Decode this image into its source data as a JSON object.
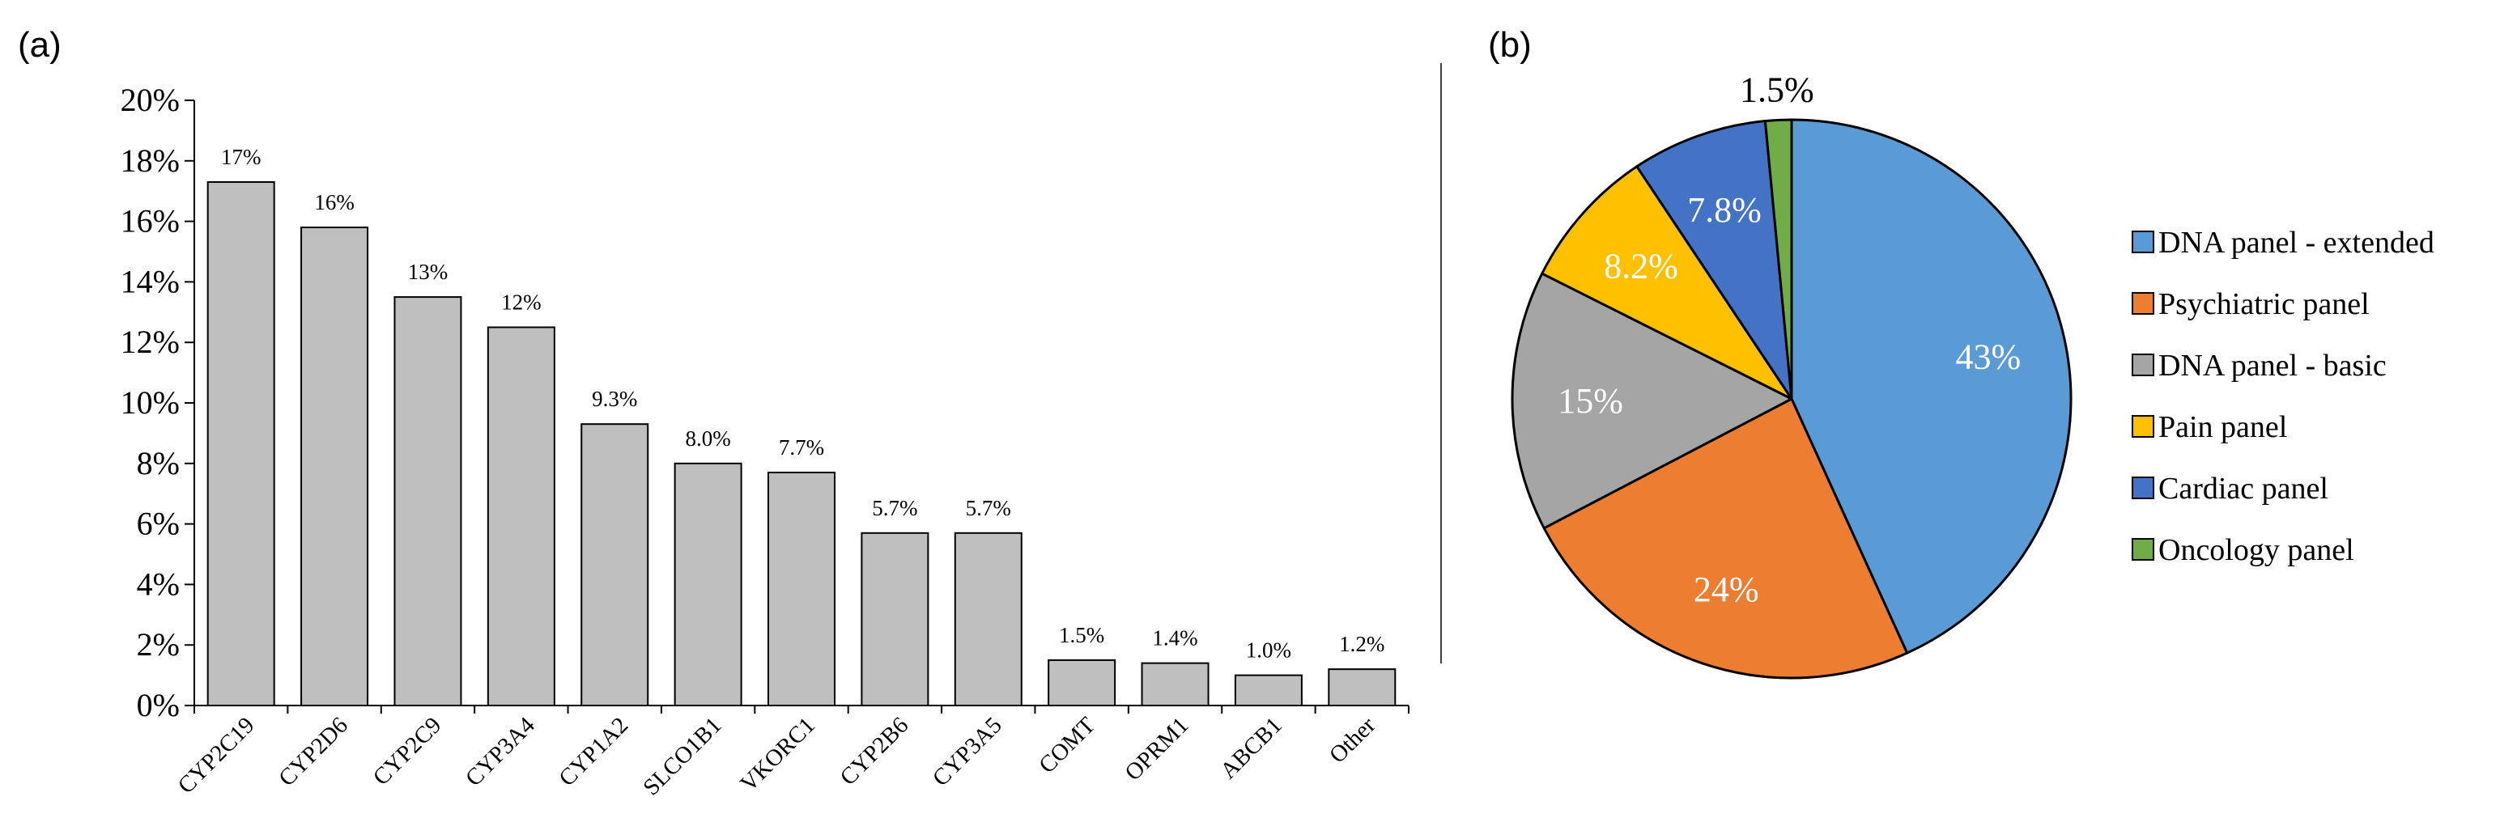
{
  "figure": {
    "panel_a_label": "(a)",
    "panel_b_label": "(b)"
  },
  "chart_data": [
    {
      "type": "bar",
      "panel": "(a)",
      "title": "",
      "xlabel": "",
      "ylabel": "",
      "categories": [
        "CYP2C19",
        "CYP2D6",
        "CYP2C9",
        "CYP3A4",
        "CYP1A2",
        "SLCO1B1",
        "VKORC1",
        "CYP2B6",
        "CYP3A5",
        "COMT",
        "OPRM1",
        "ABCB1",
        "Other"
      ],
      "values": [
        17.3,
        15.8,
        13.5,
        12.5,
        9.3,
        8.0,
        7.7,
        5.7,
        5.7,
        1.5,
        1.4,
        1.0,
        1.2
      ],
      "data_labels": [
        "17%",
        "16%",
        "13%",
        "12%",
        "9.3%",
        "8.0%",
        "7.7%",
        "5.7%",
        "5.7%",
        "1.5%",
        "1.4%",
        "1.0%",
        "1.2%"
      ],
      "ylim": [
        0,
        20
      ],
      "yticks": [
        0,
        2,
        4,
        6,
        8,
        10,
        12,
        14,
        16,
        18,
        20
      ],
      "ytick_labels": [
        "0%",
        "2%",
        "4%",
        "6%",
        "8%",
        "10%",
        "12%",
        "14%",
        "16%",
        "18%",
        "20%"
      ],
      "grid": false,
      "bar_color": "#BFBFBF",
      "edge_color": "#000000"
    },
    {
      "type": "pie",
      "panel": "(b)",
      "title": "",
      "legend_position": "right",
      "slices": [
        {
          "label": "DNA panel - extended",
          "value": 43,
          "display": "43%",
          "color": "#5B9BD5"
        },
        {
          "label": "Psychiatric panel",
          "value": 24,
          "display": "24%",
          "color": "#ED7D31"
        },
        {
          "label": "DNA panel - basic",
          "value": 15,
          "display": "15%",
          "color": "#A5A5A5"
        },
        {
          "label": "Pain panel",
          "value": 8.2,
          "display": "8.2%",
          "color": "#FFC000"
        },
        {
          "label": "Cardiac panel",
          "value": 7.8,
          "display": "7.8%",
          "color": "#4472C4"
        },
        {
          "label": "Oncology panel",
          "value": 1.5,
          "display": "1.5%",
          "color": "#70AD47"
        }
      ]
    }
  ]
}
